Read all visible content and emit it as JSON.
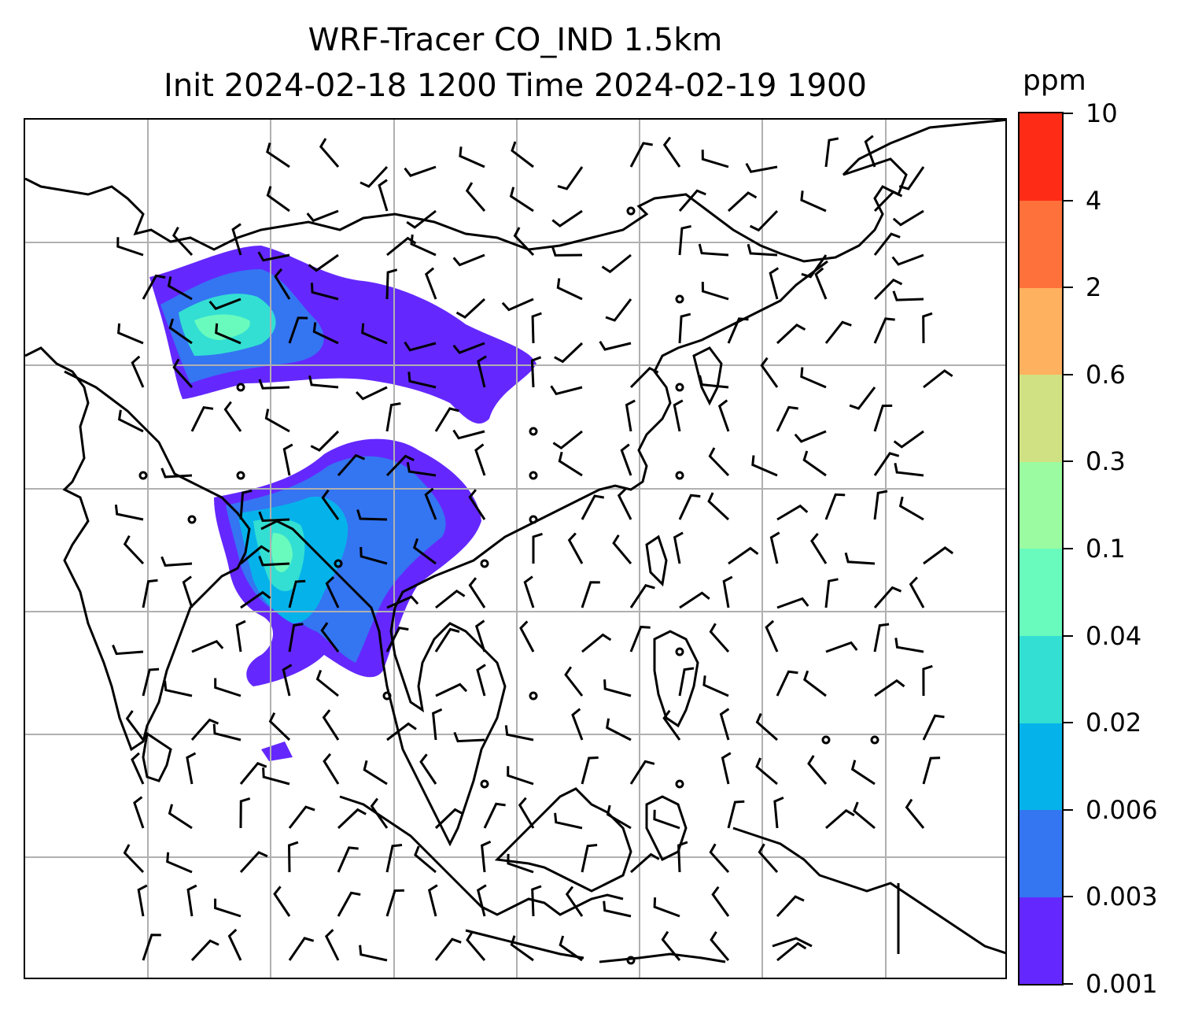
{
  "title_line1": "WRF-Tracer CO_IND 1.5km",
  "title_line2": "Init 2024-02-18 1200 Time 2024-02-19 1900",
  "colorbar": {
    "unit": "ppm",
    "levels": [
      "0.001",
      "0.003",
      "0.006",
      "0.02",
      "0.04",
      "0.1",
      "0.3",
      "0.6",
      "2",
      "4",
      "10"
    ],
    "colors": [
      "#6428fe",
      "#3475f2",
      "#05b3ea",
      "#33dfd3",
      "#69fbbd",
      "#9bfba0",
      "#cfe182",
      "#feb15f",
      "#fe713a",
      "#fe2c17"
    ]
  },
  "map": {
    "gridline_color": "#b0b0b0",
    "coastline_color": "#000000",
    "wind_barbs": "black",
    "tracer_fields": "purple-blue-green plumes over northern India/Pakistan and over Bangladesh/Myanmar/south China"
  }
}
